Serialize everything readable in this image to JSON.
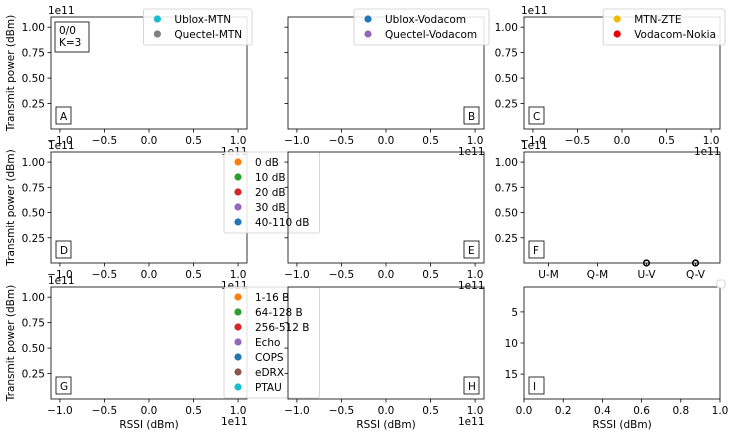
{
  "figure": {
    "shared_ylabel": "Transmit power (dBm)",
    "shared_xlabel": "RSSI (dBm)",
    "exponent_label": "1e11"
  },
  "chart_data": [
    {
      "panel": "A",
      "type": "scatter",
      "empty": true,
      "xlim": [
        -110000000000.0,
        110000000000.0
      ],
      "ylim": [
        0,
        110000000000.0
      ],
      "xticks": [
        -1.0,
        -0.5,
        0.0,
        0.5,
        1.0
      ],
      "yticks": [
        0.25,
        0.5,
        0.75,
        1.0
      ],
      "x_exponent": "1e11",
      "y_exponent": "1e11",
      "annotation": [
        "0/0",
        "K=3"
      ],
      "ylabel": "Transmit power (dBm)",
      "legend": {
        "placement": "top-right",
        "entries": [
          {
            "label": "Ublox-MTN",
            "color": "#17becf"
          },
          {
            "label": "Quectel-MTN",
            "color": "#7f7f7f"
          }
        ]
      }
    },
    {
      "panel": "B",
      "type": "scatter",
      "empty": true,
      "xlim": [
        -110000000000.0,
        110000000000.0
      ],
      "ylim": [
        0,
        110000000000.0
      ],
      "xticks": [
        -1.0,
        -0.5,
        0.0,
        0.5,
        1.0
      ],
      "x_exponent": "1e11",
      "legend": {
        "placement": "top-right",
        "entries": [
          {
            "label": "Ublox-Vodacom",
            "color": "#1f77b4"
          },
          {
            "label": "Quectel-Vodacom",
            "color": "#9467bd"
          }
        ]
      }
    },
    {
      "panel": "C",
      "type": "scatter",
      "empty": true,
      "xlim": [
        -110000000000.0,
        110000000000.0
      ],
      "ylim": [
        0,
        110000000000.0
      ],
      "xticks": [
        -1.0,
        -0.5,
        0.0,
        0.5,
        1.0
      ],
      "yticks": [
        0.25,
        0.5,
        0.75,
        1.0
      ],
      "x_exponent": "1e11",
      "y_exponent": "1e11",
      "legend": {
        "placement": "top-right",
        "entries": [
          {
            "label": "MTN-ZTE",
            "color": "#f5b800"
          },
          {
            "label": "Vodacom-Nokia",
            "color": "#e8000b"
          }
        ]
      }
    },
    {
      "panel": "D",
      "type": "scatter",
      "empty": true,
      "xlim": [
        -110000000000.0,
        110000000000.0
      ],
      "ylim": [
        0,
        110000000000.0
      ],
      "xticks": [
        -1.0,
        -0.5,
        0.0,
        0.5,
        1.0
      ],
      "yticks": [
        0.25,
        0.5,
        0.75,
        1.0
      ],
      "x_exponent": "1e11",
      "y_exponent": "1e11",
      "ylabel": "Transmit power (dBm)",
      "legend": {
        "placement": "right",
        "entries": [
          {
            "label": "0 dB",
            "color": "#ff7f0e"
          },
          {
            "label": "10 dB",
            "color": "#2ca02c"
          },
          {
            "label": "20 dB",
            "color": "#d62728"
          },
          {
            "label": "30 dB",
            "color": "#9467bd"
          },
          {
            "label": "40-110 dB",
            "color": "#1f77b4"
          }
        ]
      }
    },
    {
      "panel": "E",
      "type": "scatter",
      "empty": true,
      "xlim": [
        -110000000000.0,
        110000000000.0
      ],
      "ylim": [
        0,
        110000000000.0
      ],
      "xticks": [
        -1.0,
        -0.5,
        0.0,
        0.5,
        1.0
      ],
      "x_exponent": "1e11"
    },
    {
      "panel": "F",
      "type": "scatter",
      "categories": [
        "U-M",
        "Q-M",
        "U-V",
        "Q-V"
      ],
      "ylim": [
        0,
        110000000000.0
      ],
      "yticks": [
        0.25,
        0.5,
        0.75,
        1.0
      ],
      "y_exponent": "1e11",
      "markers": [
        {
          "category": "U-V",
          "y": 0
        },
        {
          "category": "Q-V",
          "y": 0
        }
      ]
    },
    {
      "panel": "G",
      "type": "scatter",
      "empty": true,
      "xlim": [
        -110000000000.0,
        110000000000.0
      ],
      "ylim": [
        0,
        110000000000.0
      ],
      "xticks": [
        -1.0,
        -0.5,
        0.0,
        0.5,
        1.0
      ],
      "yticks": [
        0.25,
        0.5,
        0.75,
        1.0
      ],
      "x_exponent": "1e11",
      "y_exponent": "1e11",
      "xlabel": "RSSI (dBm)",
      "ylabel": "Transmit power (dBm)",
      "legend": {
        "placement": "right",
        "entries": [
          {
            "label": "1-16 B",
            "color": "#ff7f0e"
          },
          {
            "label": "64-128 B",
            "color": "#2ca02c"
          },
          {
            "label": "256-512 B",
            "color": "#d62728"
          },
          {
            "label": "Echo",
            "color": "#9467bd"
          },
          {
            "label": "COPS",
            "color": "#1f77b4"
          },
          {
            "label": "eDRX",
            "color": "#8c564b"
          },
          {
            "label": "PTAU",
            "color": "#17becf"
          }
        ]
      }
    },
    {
      "panel": "H",
      "type": "scatter",
      "empty": true,
      "xlim": [
        -110000000000.0,
        110000000000.0
      ],
      "ylim": [
        0,
        110000000000.0
      ],
      "xticks": [
        -1.0,
        -0.5,
        0.0,
        0.5,
        1.0
      ],
      "x_exponent": "1e11",
      "xlabel": "RSSI (dBm)"
    },
    {
      "panel": "I",
      "type": "scatter",
      "empty": true,
      "xlim": [
        0,
        1
      ],
      "ylim": [
        19,
        1
      ],
      "y_inverted": true,
      "xticks": [
        0.0,
        0.2,
        0.4,
        0.6,
        0.8,
        1.0
      ],
      "yticks": [
        5,
        10,
        15
      ],
      "xlabel": "RSSI (dBm)",
      "legend": {
        "placement": "top-right",
        "entries": []
      }
    }
  ]
}
